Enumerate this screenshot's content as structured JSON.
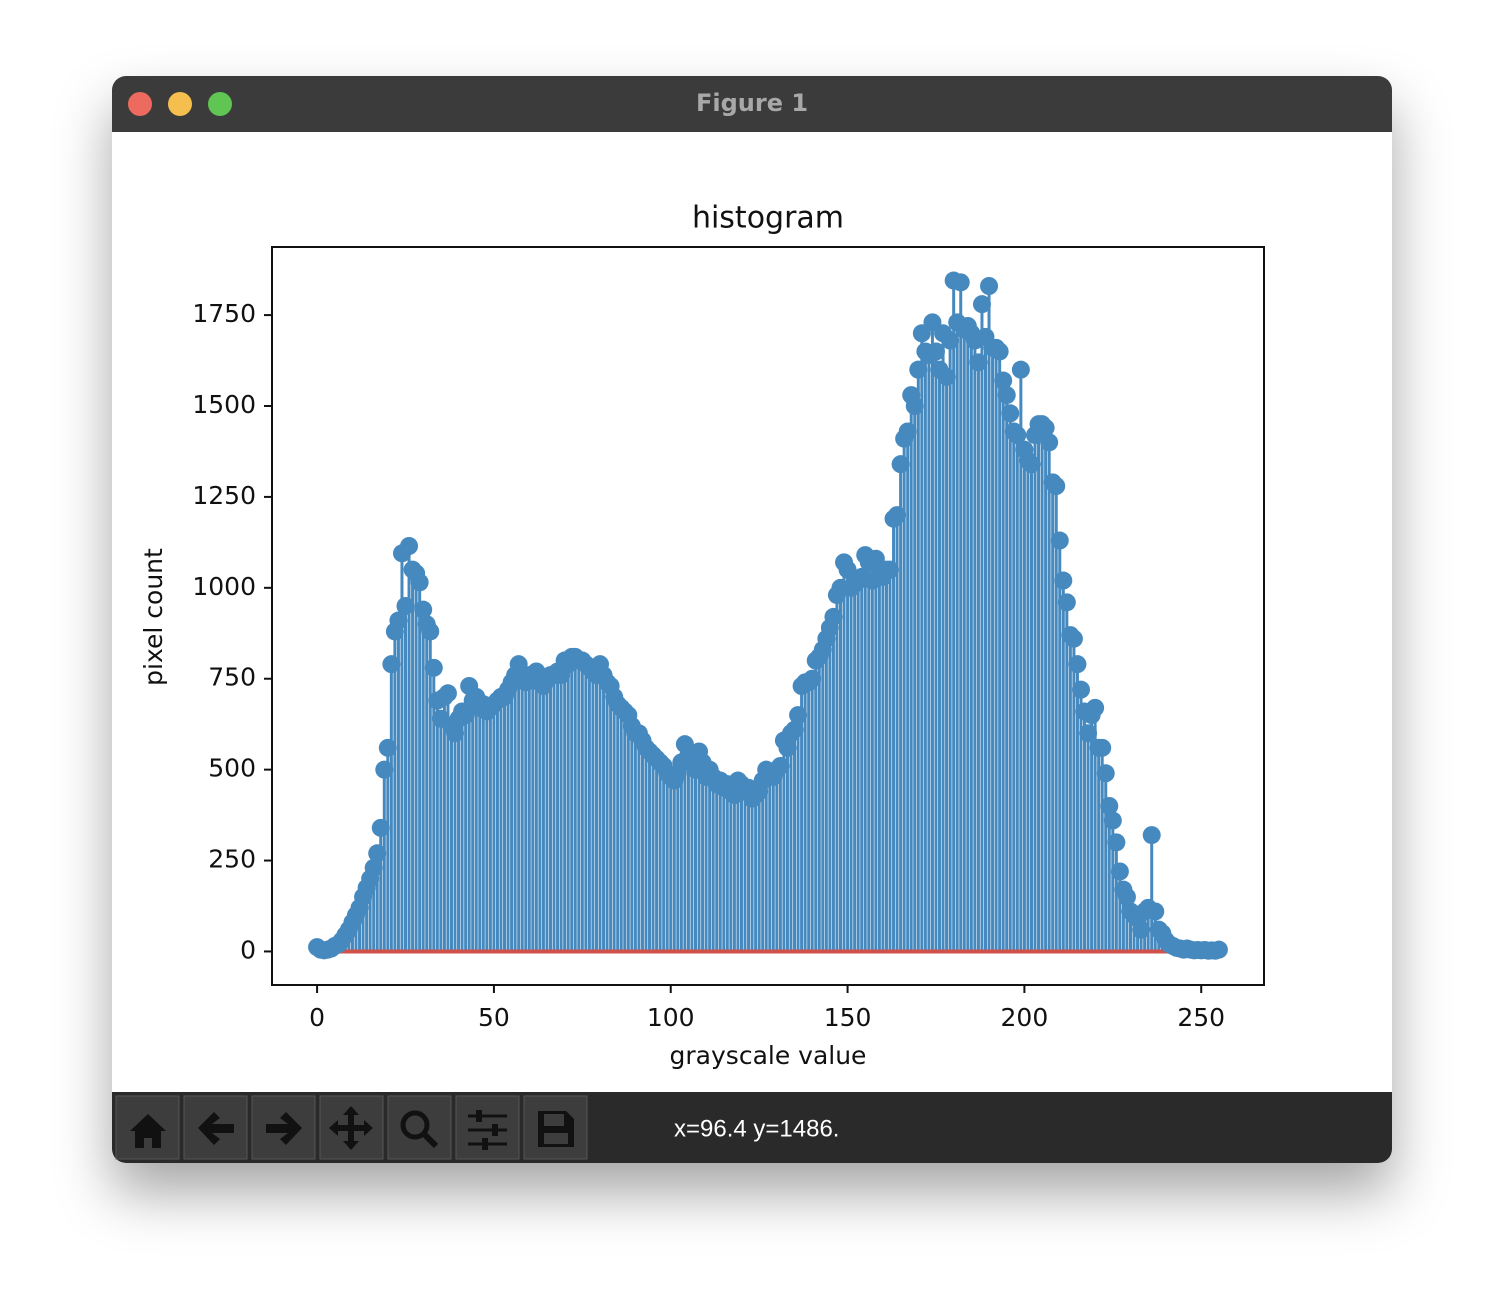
{
  "window": {
    "title": "Figure 1",
    "status": "x=96.4 y=1486."
  },
  "chart_data": {
    "type": "stem",
    "title": "histogram",
    "x_label": "grayscale value",
    "y_label": "pixel count",
    "color": "#4689bf",
    "baseline_color": "#d0504a",
    "xlim": [
      -12.75,
      267.75
    ],
    "ylim": [
      -92.25,
      1937.25
    ],
    "xticks": [
      0,
      50,
      100,
      150,
      200,
      250
    ],
    "yticks": [
      0,
      250,
      500,
      750,
      1000,
      1250,
      1500,
      1750
    ],
    "x": [
      0,
      1,
      2,
      3,
      4,
      5,
      6,
      7,
      8,
      9,
      10,
      11,
      12,
      13,
      14,
      15,
      16,
      17,
      18,
      19,
      20,
      21,
      22,
      23,
      24,
      25,
      26,
      27,
      28,
      29,
      30,
      31,
      32,
      33,
      34,
      35,
      36,
      37,
      38,
      39,
      40,
      41,
      42,
      43,
      44,
      45,
      46,
      47,
      48,
      49,
      50,
      51,
      52,
      53,
      54,
      55,
      56,
      57,
      58,
      59,
      60,
      61,
      62,
      63,
      64,
      65,
      66,
      67,
      68,
      69,
      70,
      71,
      72,
      73,
      74,
      75,
      76,
      77,
      78,
      79,
      80,
      81,
      82,
      83,
      84,
      85,
      86,
      87,
      88,
      89,
      90,
      91,
      92,
      93,
      94,
      95,
      96,
      97,
      98,
      99,
      100,
      101,
      102,
      103,
      104,
      105,
      106,
      107,
      108,
      109,
      110,
      111,
      112,
      113,
      114,
      115,
      116,
      117,
      118,
      119,
      120,
      121,
      122,
      123,
      124,
      125,
      126,
      127,
      128,
      129,
      130,
      131,
      132,
      133,
      134,
      135,
      136,
      137,
      138,
      139,
      140,
      141,
      142,
      143,
      144,
      145,
      146,
      147,
      148,
      149,
      150,
      151,
      152,
      153,
      154,
      155,
      156,
      157,
      158,
      159,
      160,
      161,
      162,
      163,
      164,
      165,
      166,
      167,
      168,
      169,
      170,
      171,
      172,
      173,
      174,
      175,
      176,
      177,
      178,
      179,
      180,
      181,
      182,
      183,
      184,
      185,
      186,
      187,
      188,
      189,
      190,
      191,
      192,
      193,
      194,
      195,
      196,
      197,
      198,
      199,
      200,
      201,
      202,
      203,
      204,
      205,
      206,
      207,
      208,
      209,
      210,
      211,
      212,
      213,
      214,
      215,
      216,
      217,
      218,
      219,
      220,
      221,
      222,
      223,
      224,
      225,
      226,
      227,
      228,
      229,
      230,
      231,
      232,
      233,
      234,
      235,
      236,
      237,
      238,
      239,
      240,
      241,
      242,
      243,
      244,
      245,
      246,
      247,
      248,
      249,
      250,
      251,
      252,
      253,
      254,
      255
    ],
    "values": [
      12,
      5,
      3,
      5,
      8,
      15,
      20,
      30,
      45,
      60,
      80,
      100,
      120,
      150,
      175,
      200,
      230,
      270,
      340,
      500,
      560,
      790,
      880,
      910,
      1095,
      950,
      1115,
      1050,
      1040,
      1015,
      940,
      900,
      880,
      780,
      690,
      640,
      700,
      710,
      620,
      600,
      640,
      660,
      650,
      730,
      690,
      700,
      670,
      680,
      660,
      670,
      680,
      690,
      700,
      700,
      720,
      740,
      760,
      790,
      760,
      740,
      760,
      750,
      770,
      740,
      730,
      750,
      760,
      760,
      770,
      760,
      800,
      790,
      810,
      810,
      800,
      800,
      790,
      780,
      770,
      760,
      790,
      760,
      740,
      730,
      700,
      680,
      670,
      660,
      650,
      620,
      600,
      600,
      580,
      560,
      550,
      540,
      530,
      520,
      510,
      490,
      480,
      470,
      490,
      520,
      570,
      540,
      520,
      500,
      550,
      520,
      480,
      500,
      480,
      460,
      470,
      450,
      460,
      440,
      430,
      470,
      460,
      440,
      450,
      420,
      430,
      440,
      470,
      500,
      490,
      480,
      500,
      510,
      580,
      560,
      600,
      610,
      650,
      730,
      740,
      740,
      750,
      800,
      810,
      830,
      860,
      890,
      920,
      980,
      1000,
      1070,
      1050,
      1000,
      1010,
      1020,
      1030,
      1090,
      1070,
      1020,
      1080,
      1040,
      1030,
      1050,
      1050,
      1190,
      1200,
      1340,
      1410,
      1430,
      1530,
      1500,
      1600,
      1700,
      1650,
      1640,
      1730,
      1650,
      1600,
      1700,
      1580,
      1680,
      1845,
      1730,
      1840,
      1710,
      1720,
      1700,
      1680,
      1620,
      1780,
      1690,
      1830,
      1660,
      1660,
      1650,
      1570,
      1530,
      1480,
      1430,
      1420,
      1600,
      1380,
      1350,
      1340,
      1420,
      1450,
      1450,
      1440,
      1400,
      1290,
      1280,
      1130,
      1020,
      960,
      870,
      860,
      790,
      720,
      660,
      600,
      650,
      670,
      560,
      560,
      490,
      400,
      360,
      300,
      220,
      170,
      150,
      110,
      100,
      90,
      60,
      110,
      120,
      320,
      110,
      60,
      50,
      30,
      20,
      15,
      10,
      8,
      5,
      8,
      5,
      3,
      4,
      3,
      4,
      2,
      3,
      2,
      5
    ]
  }
}
